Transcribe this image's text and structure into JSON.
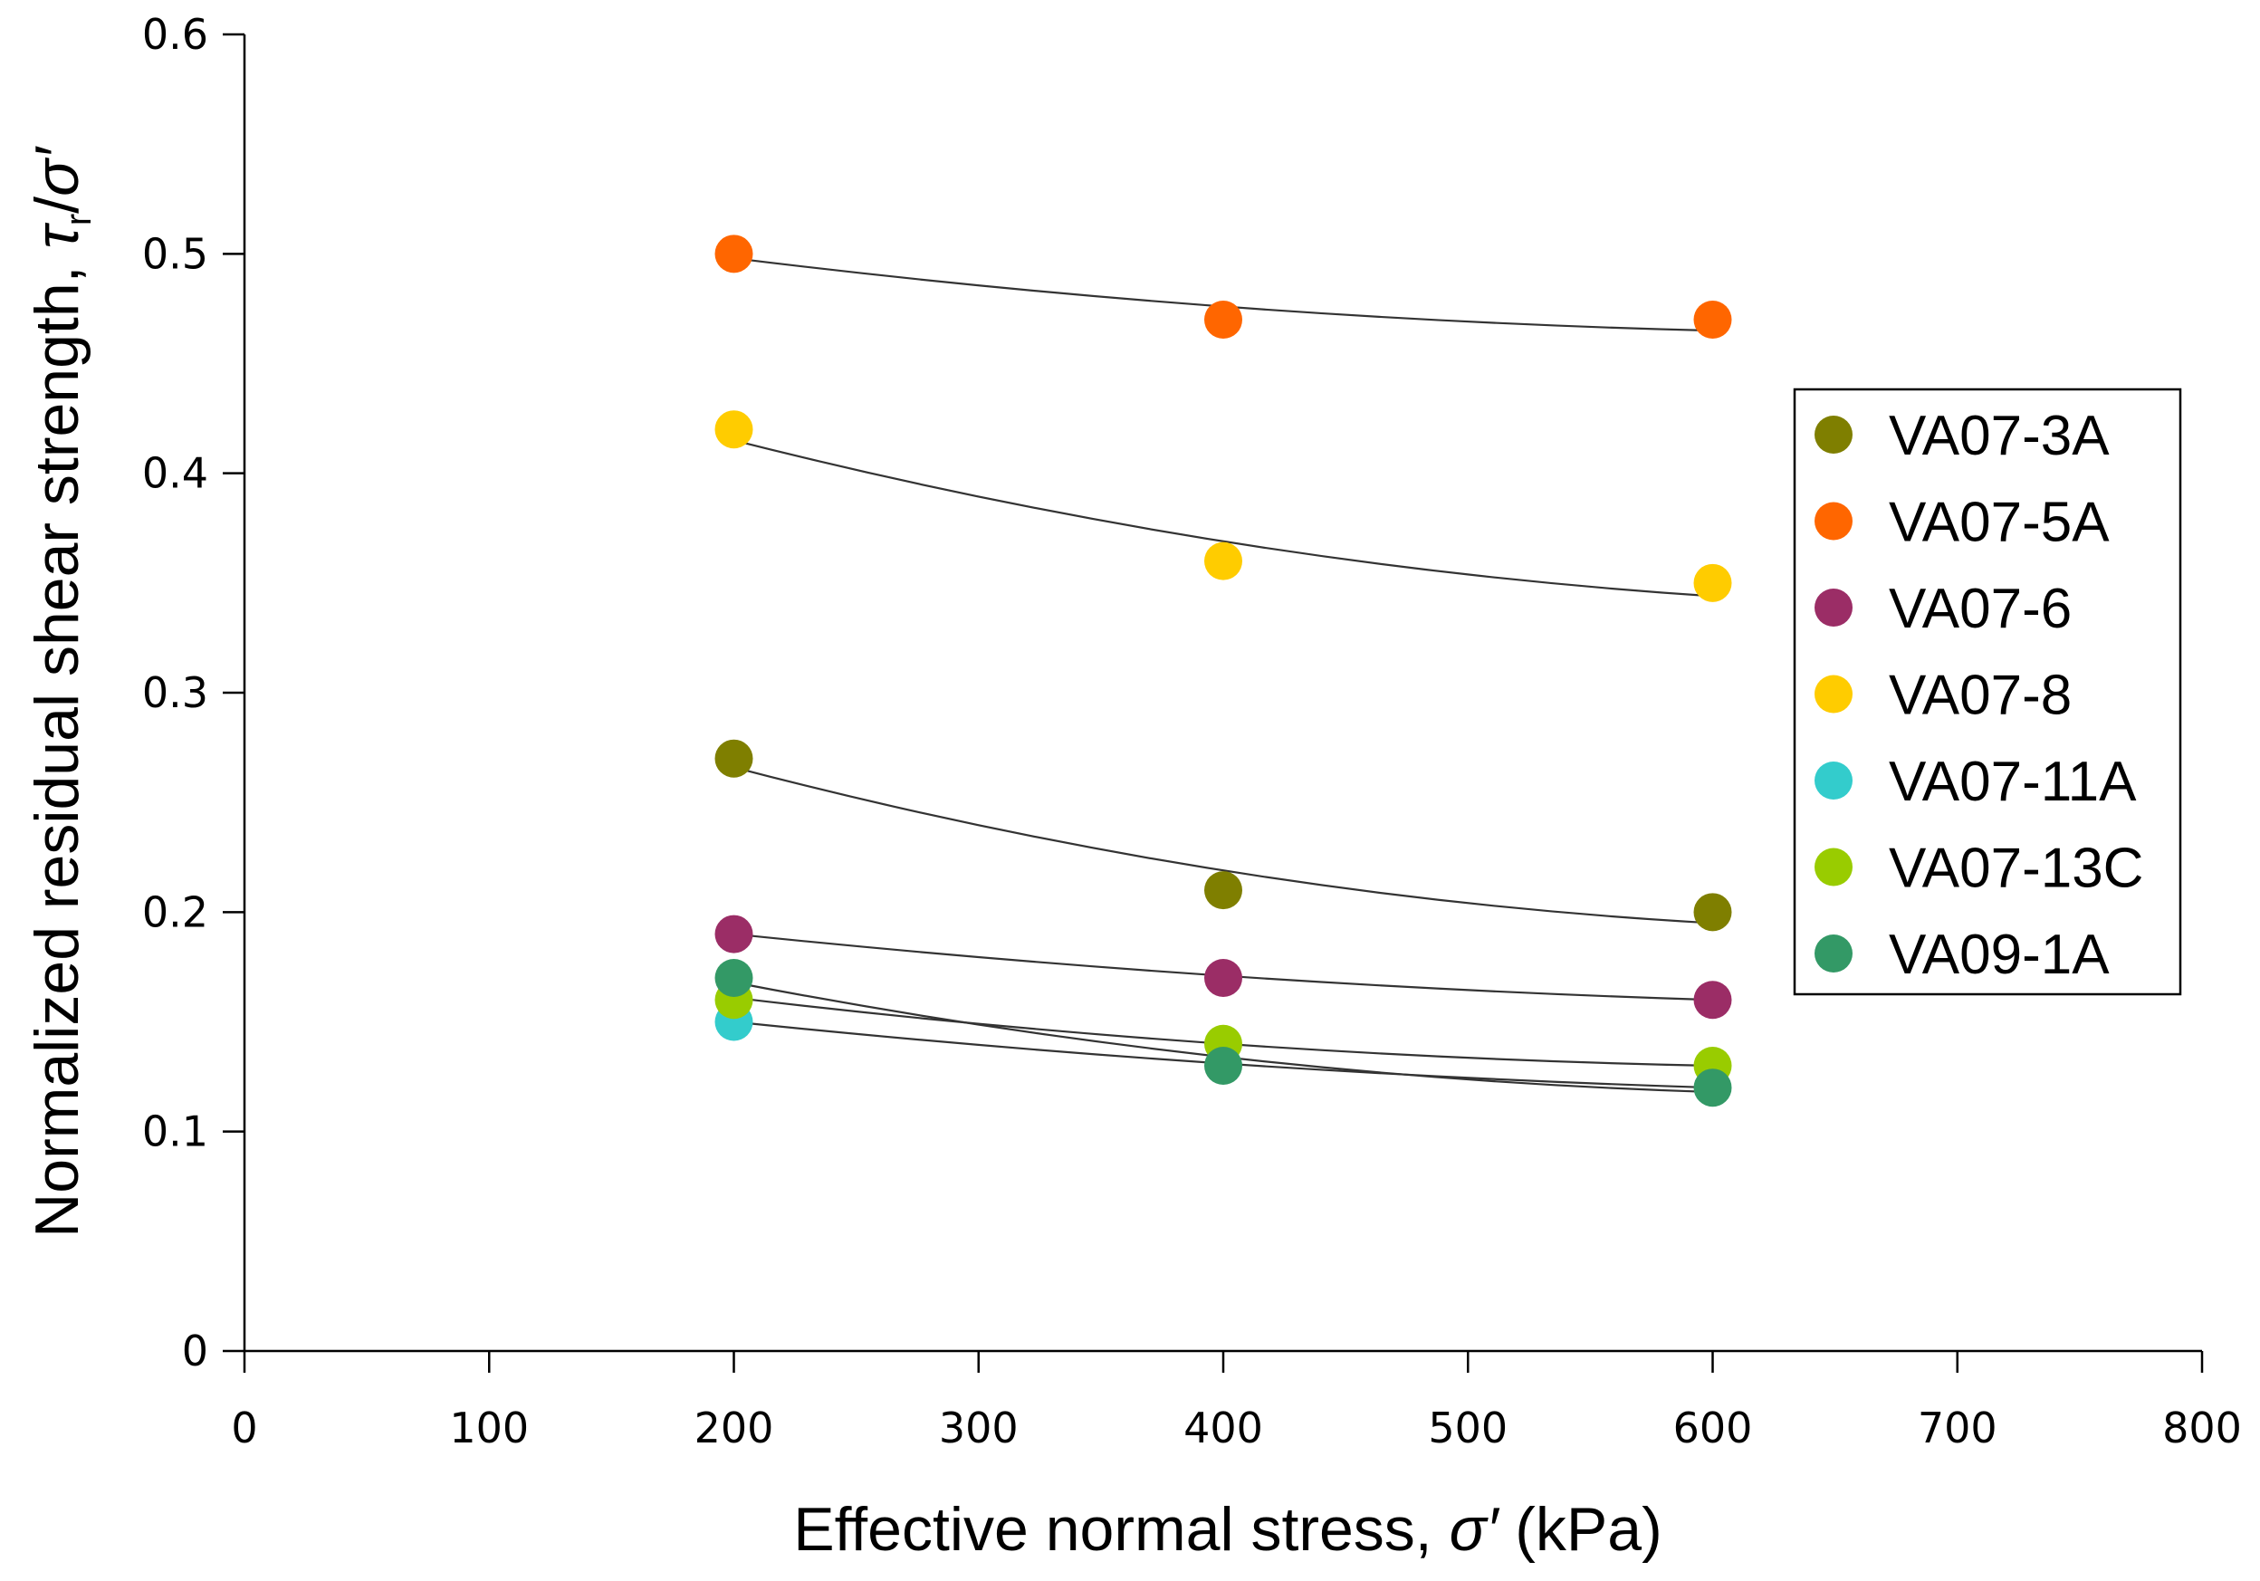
{
  "chart_data": {
    "type": "scatter",
    "title": "",
    "xlabel_parts": [
      "Effective normal stress, ",
      "σ′",
      " (kPa)"
    ],
    "ylabel_parts": [
      "Normalized residual shear strength, ",
      "τ",
      "r",
      "/",
      "σ′"
    ],
    "xlim": [
      0,
      800
    ],
    "ylim": [
      0,
      0.6
    ],
    "xticks": [
      0,
      100,
      200,
      300,
      400,
      500,
      600,
      700,
      800
    ],
    "xtick_labels": [
      "0",
      "100",
      "200",
      "300",
      "400",
      "500",
      "600",
      "700",
      "800"
    ],
    "yticks": [
      0,
      0.1,
      0.2,
      0.3,
      0.4,
      0.5,
      0.6
    ],
    "ytick_labels": [
      "0",
      "0.1",
      "0.2",
      "0.3",
      "0.4",
      "0.5",
      "0.6"
    ],
    "legend_position": "right",
    "grid": false,
    "series": [
      {
        "name": "VA07-3A",
        "color": "#7f7f00",
        "x": [
          200,
          400,
          600
        ],
        "y": [
          0.27,
          0.21,
          0.2
        ],
        "trend": [
          0.266,
          0.219,
          0.195
        ]
      },
      {
        "name": "VA07-5A",
        "color": "#ff6600",
        "x": [
          200,
          400,
          600
        ],
        "y": [
          0.5,
          0.47,
          0.47
        ],
        "trend": [
          0.498,
          0.476,
          0.465
        ]
      },
      {
        "name": "VA07-6",
        "color": "#9b2d66",
        "x": [
          200,
          400,
          600
        ],
        "y": [
          0.19,
          0.17,
          0.16
        ],
        "trend": [
          0.19,
          0.171,
          0.16
        ]
      },
      {
        "name": "VA07-8",
        "color": "#ffcc00",
        "x": [
          200,
          400,
          600
        ],
        "y": [
          0.42,
          0.36,
          0.35
        ],
        "trend": [
          0.415,
          0.369,
          0.344
        ]
      },
      {
        "name": "VA07-11A",
        "color": "#33cccc",
        "x": [
          200
        ],
        "y": [
          0.15
        ],
        "trend": null
      },
      {
        "name": "VA07-13C",
        "color": "#99cc00",
        "x": [
          200,
          400,
          600
        ],
        "y": [
          0.16,
          0.14,
          0.13
        ],
        "trend": [
          0.161,
          0.14,
          0.13
        ]
      },
      {
        "name": "VA09-1A",
        "color": "#339966",
        "x": [
          200,
          400,
          600
        ],
        "y": [
          0.17,
          0.13,
          0.12
        ],
        "trend": [
          0.168,
          0.134,
          0.118
        ]
      }
    ],
    "extra_trend": {
      "x": [
        200,
        400,
        600
      ],
      "y": [
        0.15,
        0.131,
        0.12
      ]
    }
  }
}
